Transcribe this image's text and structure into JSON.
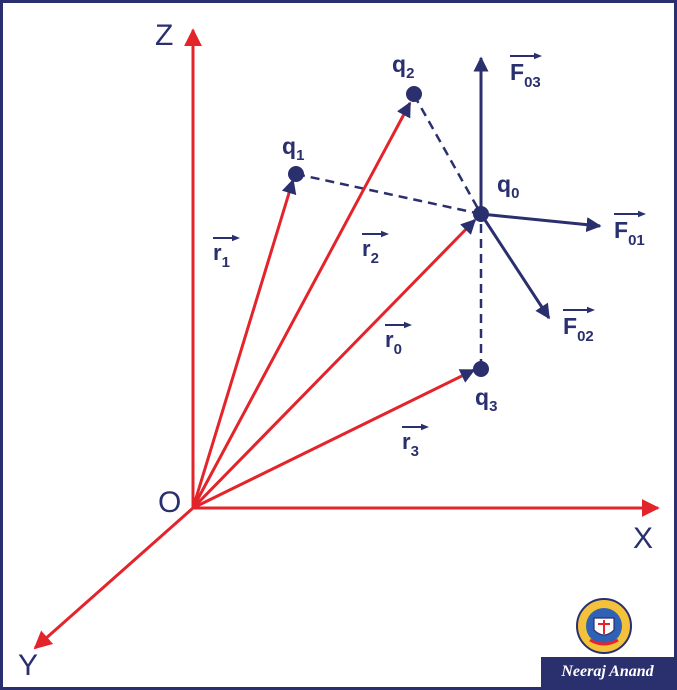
{
  "axes": {
    "z": "Z",
    "x": "X",
    "y": "Y",
    "origin": "O"
  },
  "position_vectors": [
    {
      "id": "r1",
      "base": "r",
      "sub": "1"
    },
    {
      "id": "r2",
      "base": "r",
      "sub": "2"
    },
    {
      "id": "r0",
      "base": "r",
      "sub": "0"
    },
    {
      "id": "r3",
      "base": "r",
      "sub": "3"
    }
  ],
  "charges": [
    {
      "id": "q1",
      "base": "q",
      "sub": "1"
    },
    {
      "id": "q2",
      "base": "q",
      "sub": "2"
    },
    {
      "id": "q0",
      "base": "q",
      "sub": "0"
    },
    {
      "id": "q3",
      "base": "q",
      "sub": "3"
    }
  ],
  "forces": [
    {
      "id": "F03",
      "base": "F",
      "sub": "03"
    },
    {
      "id": "F01",
      "base": "F",
      "sub": "01"
    },
    {
      "id": "F02",
      "base": "F",
      "sub": "02"
    }
  ],
  "colors": {
    "axis_red": "#e3242b",
    "navy": "#2a2f6e",
    "frame": "#2a2f6e"
  },
  "footer": {
    "author": "Neeraj Anand"
  },
  "logo": {
    "name": "anand-classes-logo-icon",
    "text_top": "ANAND CLASSES",
    "text_bottom": "A SOURCE OF EDUCATION"
  }
}
